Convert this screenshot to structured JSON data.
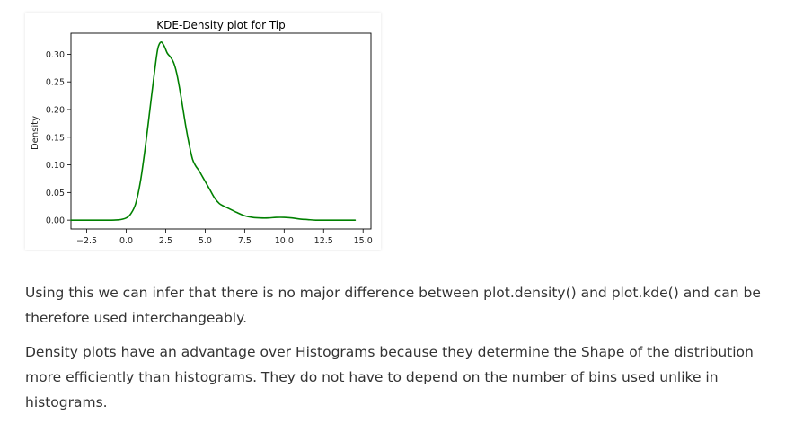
{
  "paragraphs": [
    "Using this we can infer that there is no major difference between plot.density() and plot.kde() and can be therefore used interchangeably.",
    "Density plots have an advantage over Histograms because they determine the Shape of the distribution more efficiently than histograms. They do not have to depend on the number of bins used unlike in histograms."
  ],
  "chart_data": {
    "type": "line",
    "title": "KDE-Density plot for Tip",
    "xlabel": "",
    "ylabel": "Density",
    "xlim": [
      -3.5,
      15.5
    ],
    "ylim": [
      -0.016,
      0.338
    ],
    "grid": false,
    "legend": "none",
    "x_ticks": [
      -2.5,
      0.0,
      2.5,
      5.0,
      7.5,
      10.0,
      12.5,
      15.0
    ],
    "x_tick_labels": [
      "−2.5",
      "0.0",
      "2.5",
      "5.0",
      "7.5",
      "10.0",
      "12.5",
      "15.0"
    ],
    "y_ticks": [
      0.0,
      0.05,
      0.1,
      0.15,
      0.2,
      0.25,
      0.3
    ],
    "y_tick_labels": [
      "0.00",
      "0.05",
      "0.10",
      "0.15",
      "0.20",
      "0.25",
      "0.30"
    ],
    "series": [
      {
        "color": "#008000",
        "x": [
          -3.5,
          -2.5,
          -1.5,
          -0.5,
          0.0,
          0.3,
          0.6,
          0.9,
          1.2,
          1.5,
          1.8,
          2.0,
          2.2,
          2.4,
          2.6,
          2.8,
          3.0,
          3.2,
          3.4,
          3.6,
          3.8,
          4.0,
          4.2,
          4.4,
          4.6,
          4.8,
          5.0,
          5.3,
          5.6,
          5.9,
          6.2,
          6.5,
          7.0,
          7.5,
          8.0,
          8.5,
          9.0,
          9.5,
          10.0,
          10.5,
          11.0,
          11.5,
          12.0,
          13.0,
          14.0,
          14.5
        ],
        "y": [
          0.0,
          0.0,
          0.0,
          0.0005,
          0.004,
          0.012,
          0.03,
          0.07,
          0.13,
          0.2,
          0.27,
          0.31,
          0.322,
          0.315,
          0.302,
          0.295,
          0.285,
          0.265,
          0.235,
          0.2,
          0.165,
          0.135,
          0.11,
          0.098,
          0.09,
          0.08,
          0.07,
          0.055,
          0.04,
          0.03,
          0.025,
          0.021,
          0.014,
          0.008,
          0.005,
          0.004,
          0.004,
          0.005,
          0.005,
          0.004,
          0.002,
          0.001,
          0.0,
          0.0,
          0.0,
          0.0
        ]
      }
    ]
  }
}
